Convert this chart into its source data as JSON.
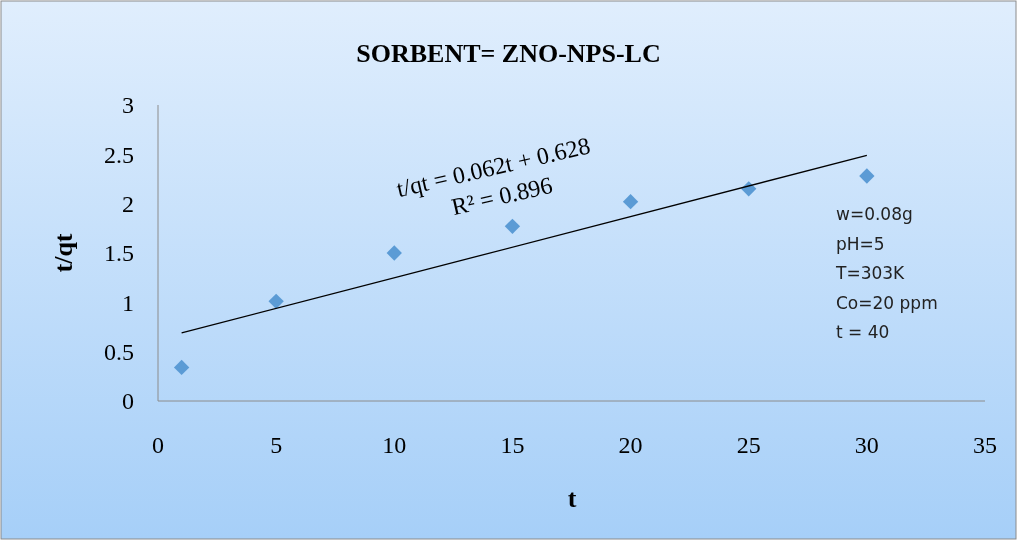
{
  "chart_data": {
    "type": "scatter",
    "title": "SORBENT= ZNO-NPS-LC",
    "xlabel": "t",
    "ylabel": "t/qt",
    "x": [
      1,
      5,
      10,
      15,
      20,
      25,
      30
    ],
    "series": [
      {
        "color": "#5b9bd5",
        "marker": "diamond",
        "values": [
          0.34,
          1.01,
          1.5,
          1.77,
          2.02,
          2.15,
          2.28
        ]
      },
      {
        "type": "line",
        "color": "#000000",
        "marker": "none",
        "x": [
          1,
          30
        ],
        "values": [
          0.69,
          2.49
        ]
      }
    ],
    "xlim": [
      0,
      35
    ],
    "xticks": [
      0,
      5,
      10,
      15,
      20,
      25,
      30,
      35
    ],
    "ylim": [
      0,
      3
    ],
    "yticks": [
      0,
      0.5,
      1,
      1.5,
      2,
      2.5,
      3
    ],
    "annotations": [
      "t/qt = 0.062t + 0.628",
      "R² = 0.896",
      "w=0.08g",
      "pH=5",
      "T=303K",
      "Co=20 ppm",
      " t = 40"
    ]
  }
}
